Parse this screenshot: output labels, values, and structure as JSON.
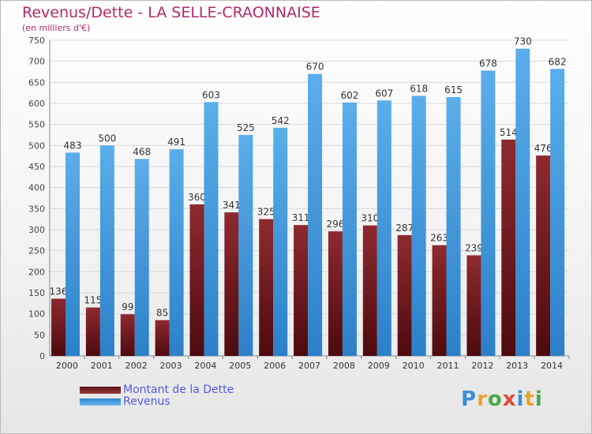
{
  "title": "Revenus/Dette - LA SELLE-CRAONNAISE",
  "subtitle": "(en milliers d'€)",
  "logo": [
    "P",
    "r",
    "o",
    "x",
    "i",
    "t",
    "i"
  ],
  "logo_colors": [
    "#3b8fd6",
    "#e8a52c",
    "#4aa84a",
    "#d94d3a",
    "#3b8fd6",
    "#e8a52c",
    "#4aa84a"
  ],
  "chart_data": {
    "type": "bar",
    "categories": [
      "2000",
      "2001",
      "2002",
      "2003",
      "2004",
      "2005",
      "2006",
      "2007",
      "2008",
      "2009",
      "2010",
      "2011",
      "2012",
      "2013",
      "2014"
    ],
    "series": [
      {
        "name": "Montant de la Dette",
        "color": "#7a1f24",
        "values": [
          136,
          115,
          99,
          85,
          360,
          341,
          325,
          311,
          296,
          310,
          287,
          263,
          239,
          514,
          476
        ]
      },
      {
        "name": "Revenus",
        "color": "#4aa3e6",
        "values": [
          483,
          500,
          468,
          491,
          603,
          525,
          542,
          670,
          602,
          607,
          618,
          615,
          678,
          730,
          682
        ]
      }
    ],
    "yticks": [
      0,
      50,
      100,
      150,
      200,
      250,
      300,
      350,
      400,
      450,
      500,
      550,
      600,
      650,
      700,
      750
    ],
    "ylim": [
      0,
      750
    ],
    "grid": true,
    "legend": "bottom-left"
  }
}
